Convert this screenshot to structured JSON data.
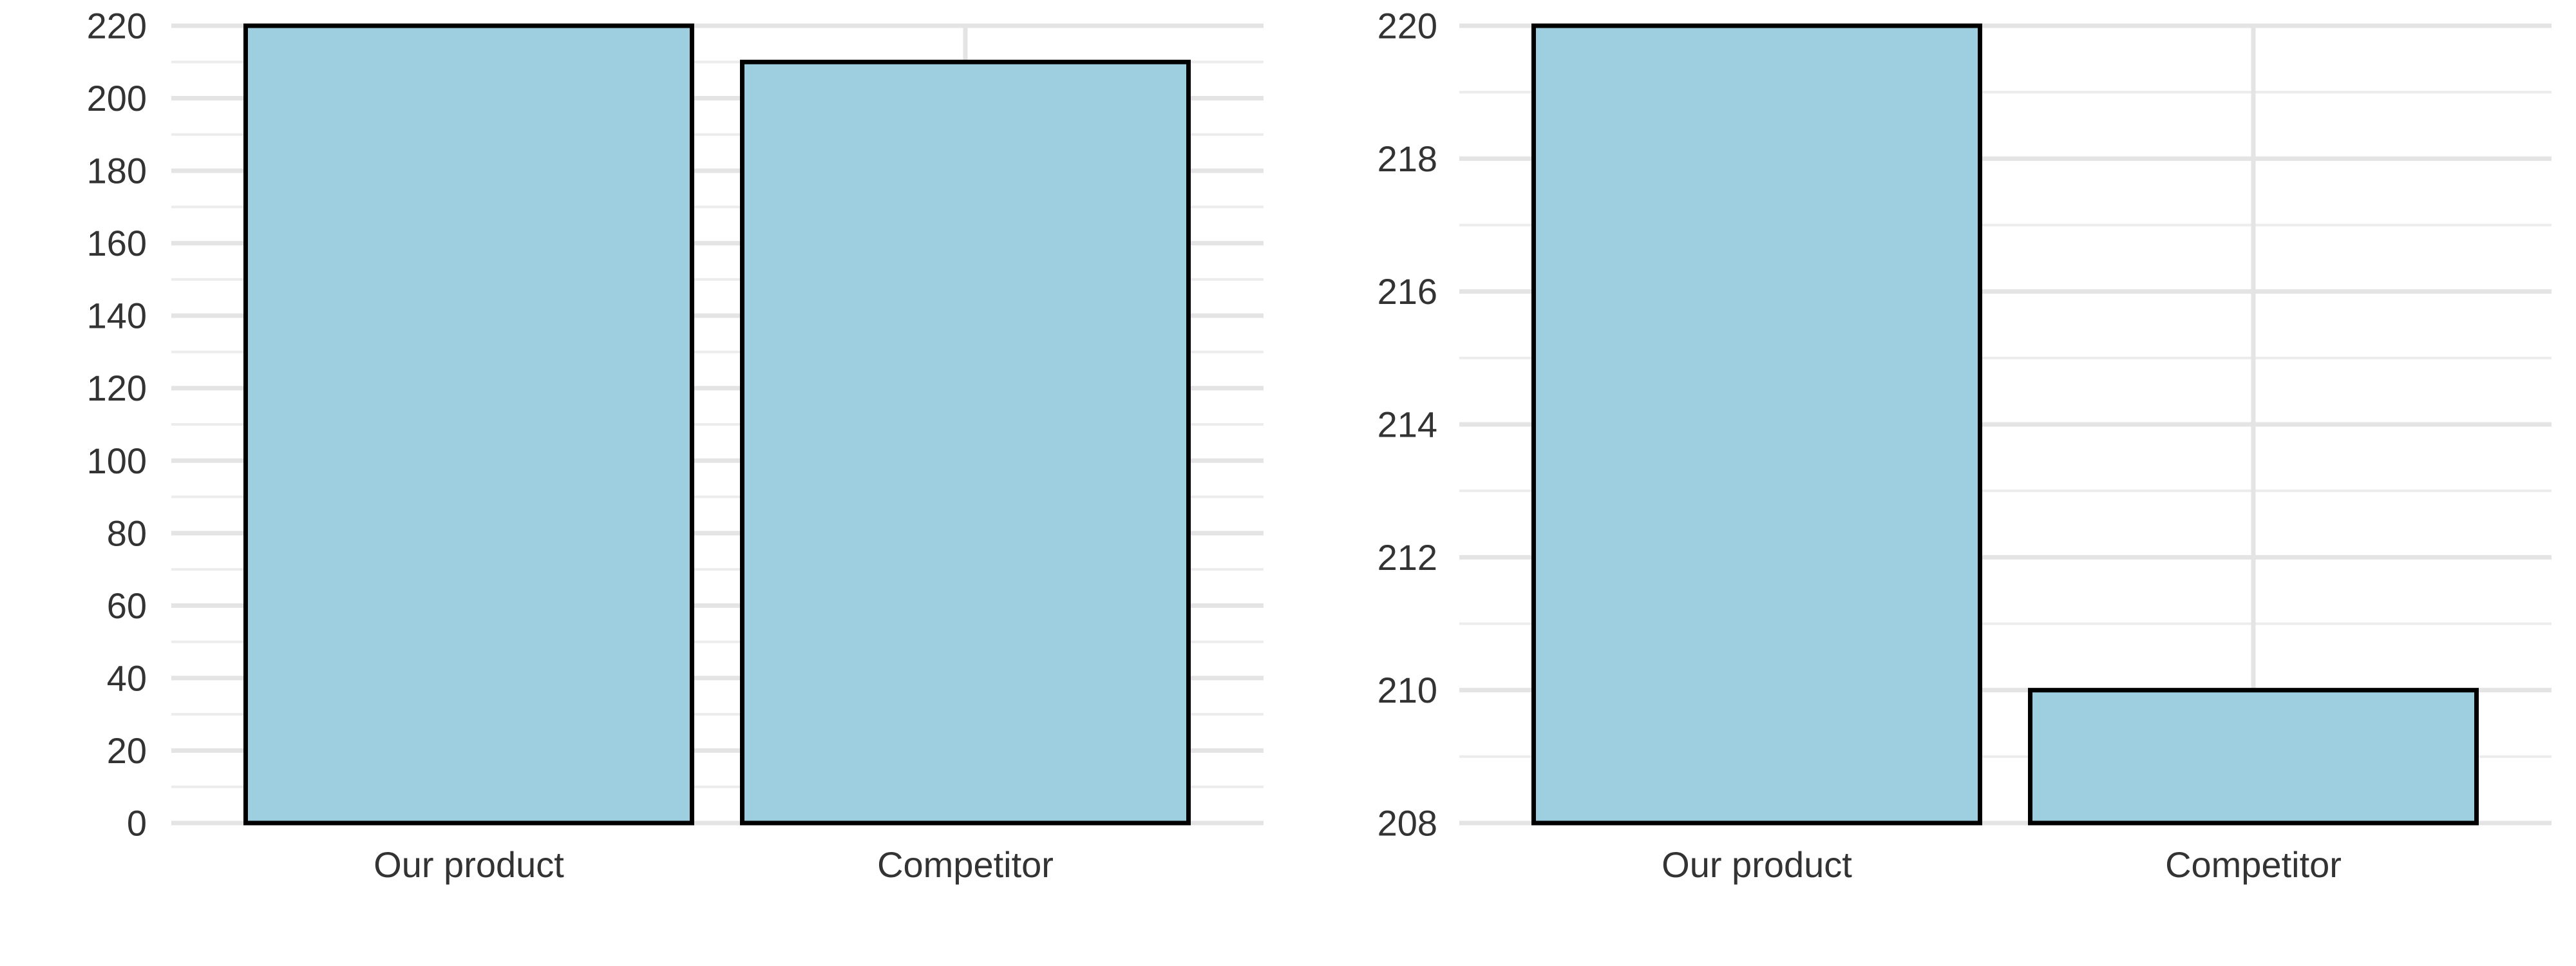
{
  "chart_data": [
    {
      "type": "bar",
      "categories": [
        "Our product",
        "Competitor"
      ],
      "values": [
        220,
        210
      ],
      "ylim": [
        0,
        220
      ],
      "yticks": [
        0,
        20,
        40,
        60,
        80,
        100,
        120,
        140,
        160,
        180,
        200,
        220
      ],
      "grid": true,
      "legend": "none",
      "bar_color": "#9ecfe0",
      "edge_color": "#000000"
    },
    {
      "type": "bar",
      "categories": [
        "Our product",
        "Competitor"
      ],
      "values": [
        220,
        210
      ],
      "ylim": [
        208,
        220
      ],
      "yticks": [
        208,
        210,
        212,
        214,
        216,
        218,
        220
      ],
      "grid": true,
      "legend": "none",
      "bar_color": "#9ecfe0",
      "edge_color": "#000000"
    }
  ]
}
